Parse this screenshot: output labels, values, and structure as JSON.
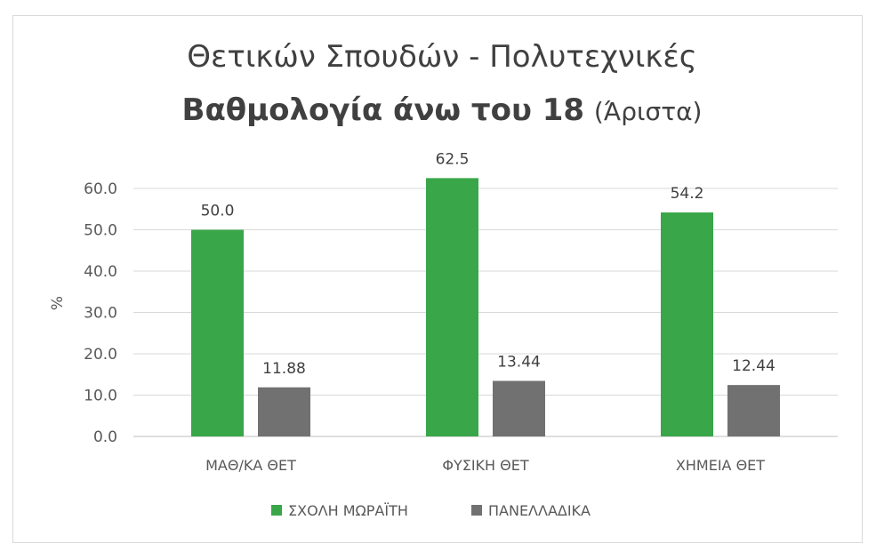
{
  "chart_data": {
    "type": "bar",
    "title_line1": "Θετικών Σπουδών - Πολυτεχνικές",
    "title_line2_bold": "Βαθμολογία άνω του 18",
    "title_line2_normal": "(Άριστα)",
    "ylabel": "%",
    "xlabel": "",
    "ylim": [
      0,
      60
    ],
    "yticks": [
      "0.0",
      "10.0",
      "20.0",
      "30.0",
      "40.0",
      "50.0",
      "60.0"
    ],
    "categories": [
      "ΜΑΘ/ΚΑ ΘΕΤ",
      "ΦΥΣΙΚΗ ΘΕΤ",
      "ΧΗΜΕΙΑ ΘΕΤ"
    ],
    "series": [
      {
        "name": "ΣΧΟΛΗ ΜΩΡΑΪΤΗ",
        "color": "#3aa64a",
        "values": [
          50.0,
          62.5,
          54.2
        ],
        "labels": [
          "50.0",
          "62.5",
          "54.2"
        ]
      },
      {
        "name": "ΠΑΝΕΛΛΑΔΙΚΑ",
        "color": "#717171",
        "values": [
          11.88,
          13.44,
          12.44
        ],
        "labels": [
          "11.88",
          "13.44",
          "12.44"
        ]
      }
    ],
    "grid": true,
    "legend_position": "bottom"
  }
}
